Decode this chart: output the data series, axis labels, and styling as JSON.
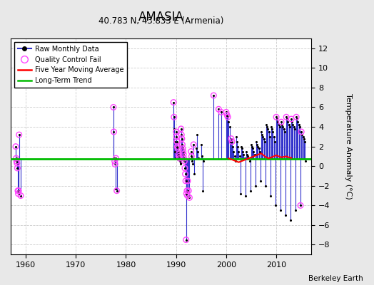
{
  "title": "AMASIA",
  "subtitle": "40.783 N, 43.833 E (Armenia)",
  "ylabel": "Temperature Anomaly (°C)",
  "credit": "Berkeley Earth",
  "ylim": [
    -9,
    13
  ],
  "yticks": [
    -8,
    -6,
    -4,
    -2,
    0,
    2,
    4,
    6,
    8,
    10,
    12
  ],
  "xlim": [
    1957,
    2017
  ],
  "xticks": [
    1960,
    1970,
    1980,
    1990,
    2000,
    2010
  ],
  "background_color": "#e8e8e8",
  "plot_bg_color": "#ffffff",
  "raw_line_color": "#3333cc",
  "raw_dot_color": "#000000",
  "qc_fail_color": "#ff44ff",
  "moving_avg_color": "#ff0000",
  "long_term_color": "#00bb00",
  "long_term_value": 0.75,
  "grid_color": "#cccccc",
  "seg1_raw": [
    [
      1958.0,
      2.0
    ],
    [
      1958.08,
      0.8
    ],
    [
      1958.17,
      0.5
    ],
    [
      1958.25,
      0.3
    ],
    [
      1958.33,
      -0.2
    ],
    [
      1958.42,
      -2.5
    ],
    [
      1958.5,
      -2.8
    ],
    [
      1958.58,
      -2.5
    ],
    [
      1958.67,
      3.2
    ],
    [
      1959.0,
      -3.0
    ]
  ],
  "seg1_qc": [
    [
      1958.0,
      2.0
    ],
    [
      1958.08,
      0.8
    ],
    [
      1958.17,
      0.5
    ],
    [
      1958.25,
      0.3
    ],
    [
      1958.33,
      -0.2
    ],
    [
      1958.42,
      -2.5
    ],
    [
      1958.5,
      -2.8
    ],
    [
      1958.58,
      -2.5
    ],
    [
      1958.67,
      3.2
    ],
    [
      1959.0,
      -3.0
    ]
  ],
  "seg2_raw": [
    [
      1977.5,
      6.0
    ],
    [
      1977.58,
      3.5
    ],
    [
      1977.67,
      0.8
    ],
    [
      1977.75,
      0.5
    ],
    [
      1977.83,
      0.2
    ],
    [
      1977.92,
      -2.3
    ],
    [
      1978.0,
      0.8
    ],
    [
      1978.17,
      -2.5
    ]
  ],
  "seg2_qc": [
    [
      1977.5,
      6.0
    ],
    [
      1977.58,
      3.5
    ],
    [
      1977.75,
      0.5
    ],
    [
      1977.83,
      0.2
    ],
    [
      1978.0,
      0.8
    ],
    [
      1978.17,
      -2.5
    ]
  ],
  "seg3_raw": [
    [
      1989.5,
      6.5
    ],
    [
      1989.58,
      5.0
    ],
    [
      1989.67,
      3.8
    ],
    [
      1989.75,
      2.5
    ],
    [
      1989.83,
      1.5
    ],
    [
      1989.92,
      0.8
    ],
    [
      1990.0,
      3.5
    ],
    [
      1990.08,
      3.0
    ],
    [
      1990.17,
      2.5
    ],
    [
      1990.25,
      2.0
    ],
    [
      1990.33,
      1.8
    ],
    [
      1990.42,
      1.5
    ],
    [
      1990.5,
      1.2
    ],
    [
      1990.58,
      1.0
    ],
    [
      1990.67,
      0.8
    ],
    [
      1990.75,
      0.5
    ],
    [
      1990.83,
      0.3
    ],
    [
      1990.92,
      0.2
    ],
    [
      1991.0,
      3.8
    ],
    [
      1991.08,
      3.2
    ],
    [
      1991.17,
      2.8
    ],
    [
      1991.25,
      2.2
    ],
    [
      1991.33,
      1.8
    ],
    [
      1991.42,
      1.5
    ],
    [
      1991.5,
      1.2
    ],
    [
      1991.58,
      0.8
    ],
    [
      1991.67,
      0.5
    ],
    [
      1991.75,
      -0.2
    ],
    [
      1991.83,
      -0.8
    ],
    [
      1991.92,
      -1.5
    ],
    [
      1992.0,
      -7.5
    ],
    [
      1992.08,
      -2.8
    ],
    [
      1992.17,
      -2.5
    ],
    [
      1992.25,
      -3.0
    ],
    [
      1992.33,
      -1.5
    ],
    [
      1992.5,
      -2.5
    ],
    [
      1992.67,
      -3.2
    ],
    [
      1993.0,
      1.5
    ],
    [
      1993.08,
      1.0
    ],
    [
      1993.17,
      0.8
    ],
    [
      1993.25,
      0.5
    ],
    [
      1993.33,
      0.2
    ],
    [
      1993.5,
      2.2
    ],
    [
      1993.67,
      -0.8
    ],
    [
      1994.0,
      1.8
    ],
    [
      1994.17,
      3.2
    ],
    [
      1994.33,
      1.5
    ],
    [
      1994.5,
      0.8
    ],
    [
      1995.0,
      2.2
    ],
    [
      1995.17,
      1.0
    ],
    [
      1995.33,
      -2.5
    ],
    [
      1995.5,
      0.5
    ]
  ],
  "seg3_qc": [
    [
      1989.5,
      6.5
    ],
    [
      1989.58,
      5.0
    ],
    [
      1990.0,
      3.5
    ],
    [
      1990.08,
      3.0
    ],
    [
      1990.17,
      2.5
    ],
    [
      1990.25,
      2.0
    ],
    [
      1990.33,
      1.8
    ],
    [
      1990.5,
      1.2
    ],
    [
      1990.58,
      1.0
    ],
    [
      1990.67,
      0.8
    ],
    [
      1991.0,
      3.8
    ],
    [
      1991.08,
      3.2
    ],
    [
      1991.17,
      2.8
    ],
    [
      1991.25,
      2.2
    ],
    [
      1991.33,
      1.8
    ],
    [
      1991.42,
      1.5
    ],
    [
      1991.5,
      1.2
    ],
    [
      1991.58,
      0.8
    ],
    [
      1991.67,
      0.5
    ],
    [
      1991.75,
      -0.2
    ],
    [
      1991.83,
      -0.8
    ],
    [
      1991.92,
      -1.5
    ],
    [
      1992.0,
      -7.5
    ],
    [
      1992.08,
      -2.8
    ],
    [
      1992.17,
      -2.5
    ],
    [
      1992.25,
      -3.0
    ],
    [
      1992.33,
      -1.5
    ],
    [
      1992.5,
      -2.5
    ],
    [
      1992.67,
      -3.2
    ],
    [
      1993.0,
      1.5
    ],
    [
      1993.08,
      1.0
    ],
    [
      1993.5,
      2.2
    ]
  ],
  "seg4_raw": [
    [
      1997.5,
      7.2
    ],
    [
      1998.5,
      5.8
    ],
    [
      1999.0,
      5.5
    ],
    [
      2000.0,
      5.5
    ],
    [
      2000.17,
      5.2
    ],
    [
      2000.33,
      5.0
    ],
    [
      2000.5,
      4.5
    ],
    [
      2000.67,
      4.0
    ],
    [
      2000.83,
      2.5
    ],
    [
      2001.0,
      2.8
    ],
    [
      2001.17,
      2.5
    ],
    [
      2001.33,
      2.0
    ],
    [
      2001.5,
      1.5
    ],
    [
      2001.67,
      1.0
    ],
    [
      2001.83,
      0.5
    ],
    [
      2002.0,
      3.0
    ],
    [
      2002.17,
      2.5
    ],
    [
      2002.33,
      2.0
    ],
    [
      2002.5,
      1.5
    ],
    [
      2002.67,
      1.0
    ],
    [
      2002.83,
      -2.8
    ],
    [
      2003.0,
      2.0
    ],
    [
      2003.17,
      1.8
    ],
    [
      2003.33,
      1.5
    ],
    [
      2003.5,
      1.2
    ],
    [
      2003.67,
      0.8
    ],
    [
      2003.83,
      -3.0
    ],
    [
      2004.0,
      1.5
    ],
    [
      2004.17,
      1.2
    ],
    [
      2004.33,
      1.0
    ],
    [
      2004.5,
      0.8
    ],
    [
      2004.67,
      0.5
    ],
    [
      2004.83,
      -2.5
    ],
    [
      2005.0,
      2.2
    ],
    [
      2005.17,
      2.0
    ],
    [
      2005.33,
      1.8
    ],
    [
      2005.5,
      1.5
    ],
    [
      2005.67,
      1.2
    ],
    [
      2005.83,
      -2.0
    ],
    [
      2006.0,
      2.5
    ],
    [
      2006.17,
      2.2
    ],
    [
      2006.33,
      2.0
    ],
    [
      2006.5,
      1.8
    ],
    [
      2006.67,
      1.5
    ],
    [
      2006.83,
      -1.5
    ],
    [
      2007.0,
      3.5
    ],
    [
      2007.17,
      3.2
    ],
    [
      2007.33,
      3.0
    ],
    [
      2007.5,
      2.8
    ],
    [
      2007.67,
      2.5
    ],
    [
      2007.83,
      -2.0
    ],
    [
      2008.0,
      4.2
    ],
    [
      2008.17,
      4.0
    ],
    [
      2008.33,
      3.8
    ],
    [
      2008.5,
      3.5
    ],
    [
      2008.67,
      3.0
    ],
    [
      2008.83,
      -3.0
    ],
    [
      2009.0,
      4.0
    ],
    [
      2009.17,
      3.8
    ],
    [
      2009.33,
      3.5
    ],
    [
      2009.5,
      3.0
    ],
    [
      2009.67,
      2.5
    ],
    [
      2009.83,
      -4.0
    ],
    [
      2010.0,
      5.0
    ],
    [
      2010.17,
      4.8
    ],
    [
      2010.33,
      4.5
    ],
    [
      2010.5,
      4.2
    ],
    [
      2010.67,
      4.0
    ],
    [
      2010.83,
      -4.5
    ],
    [
      2011.0,
      4.5
    ],
    [
      2011.17,
      4.2
    ],
    [
      2011.33,
      4.0
    ],
    [
      2011.5,
      3.8
    ],
    [
      2011.67,
      3.5
    ],
    [
      2011.83,
      -5.0
    ],
    [
      2012.0,
      5.0
    ],
    [
      2012.17,
      4.8
    ],
    [
      2012.33,
      4.5
    ],
    [
      2012.5,
      4.2
    ],
    [
      2012.67,
      4.0
    ],
    [
      2012.83,
      -5.5
    ],
    [
      2013.0,
      4.8
    ],
    [
      2013.17,
      4.5
    ],
    [
      2013.33,
      4.2
    ],
    [
      2013.5,
      4.0
    ],
    [
      2013.67,
      3.8
    ],
    [
      2013.83,
      -4.5
    ],
    [
      2014.0,
      5.0
    ],
    [
      2014.17,
      4.8
    ],
    [
      2014.33,
      4.5
    ],
    [
      2014.5,
      4.2
    ],
    [
      2014.67,
      4.0
    ],
    [
      2014.83,
      -4.0
    ],
    [
      2015.0,
      3.5
    ],
    [
      2015.17,
      3.2
    ],
    [
      2015.33,
      3.0
    ],
    [
      2015.5,
      2.8
    ],
    [
      2015.67,
      2.5
    ],
    [
      2015.83,
      0.5
    ]
  ],
  "seg4_qc": [
    [
      1997.5,
      7.2
    ],
    [
      1998.5,
      5.8
    ],
    [
      1999.0,
      5.5
    ],
    [
      2000.0,
      5.5
    ],
    [
      2000.17,
      5.2
    ],
    [
      2000.33,
      5.0
    ],
    [
      2001.0,
      2.8
    ],
    [
      2001.17,
      2.5
    ],
    [
      2010.0,
      5.0
    ],
    [
      2011.0,
      4.5
    ],
    [
      2012.0,
      5.0
    ],
    [
      2013.0,
      4.8
    ],
    [
      2014.0,
      5.0
    ],
    [
      2015.0,
      3.5
    ],
    [
      2014.83,
      -4.0
    ]
  ],
  "moving_avg_pts": [
    [
      2000.5,
      0.8
    ],
    [
      2001.0,
      0.7
    ],
    [
      2001.5,
      0.6
    ],
    [
      2002.0,
      0.5
    ],
    [
      2002.5,
      0.4
    ],
    [
      2003.0,
      0.5
    ],
    [
      2003.5,
      0.6
    ],
    [
      2004.0,
      0.7
    ],
    [
      2004.5,
      0.8
    ],
    [
      2005.0,
      0.9
    ],
    [
      2005.5,
      1.0
    ],
    [
      2006.0,
      1.1
    ],
    [
      2006.5,
      1.2
    ],
    [
      2007.0,
      1.3
    ],
    [
      2007.5,
      1.1
    ],
    [
      2008.0,
      0.9
    ],
    [
      2008.5,
      0.8
    ],
    [
      2009.0,
      0.9
    ],
    [
      2009.5,
      1.0
    ],
    [
      2010.0,
      1.1
    ],
    [
      2010.5,
      1.0
    ],
    [
      2011.0,
      0.9
    ],
    [
      2011.5,
      0.95
    ],
    [
      2012.0,
      1.0
    ],
    [
      2012.5,
      0.9
    ],
    [
      2013.0,
      0.85
    ]
  ]
}
